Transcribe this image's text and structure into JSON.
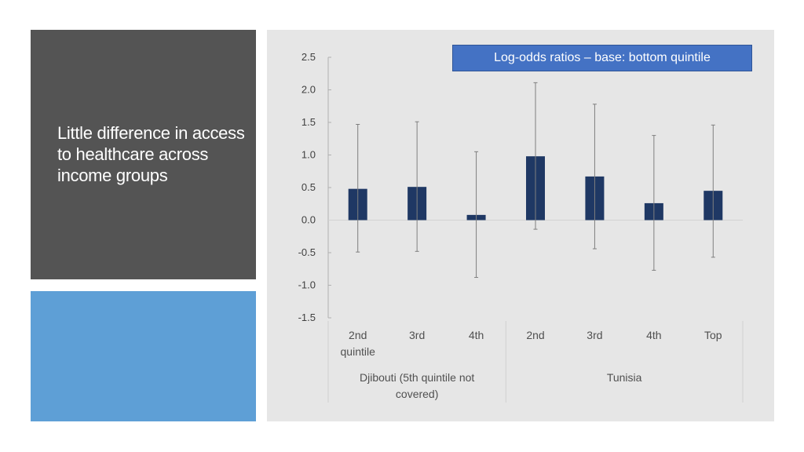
{
  "slide": {
    "title": "Little difference in access to healthcare across income groups"
  },
  "colors": {
    "title_panel": "#545454",
    "accent_panel": "#5e9fd6",
    "chart_panel": "#e6e6e6",
    "bar": "#1f3864",
    "legend_box": "#4472c4"
  },
  "chart_data": {
    "type": "bar",
    "annotation": "Log-odds ratios – base: bottom quintile",
    "ylim": [
      -1.5,
      2.5
    ],
    "y_ticks": [
      "2.5",
      "2.0",
      "1.5",
      "1.0",
      "0.5",
      "0.0",
      "-0.5",
      "-1.0",
      "-1.5"
    ],
    "categories": [
      "2nd quintile",
      "3rd",
      "4th",
      "2nd",
      "3rd",
      "4th",
      "Top"
    ],
    "groups": [
      {
        "label": "Djibouti (5th quintile not covered)",
        "count": 3
      },
      {
        "label": "Tunisia",
        "count": 4
      }
    ],
    "values": [
      0.48,
      0.51,
      0.08,
      0.98,
      0.67,
      0.26,
      0.45
    ],
    "error_low": [
      -0.49,
      -0.48,
      -0.88,
      -0.14,
      -0.44,
      -0.77,
      -0.57
    ],
    "error_high": [
      1.47,
      1.51,
      1.05,
      2.11,
      1.78,
      1.3,
      1.46
    ],
    "grid": false
  }
}
